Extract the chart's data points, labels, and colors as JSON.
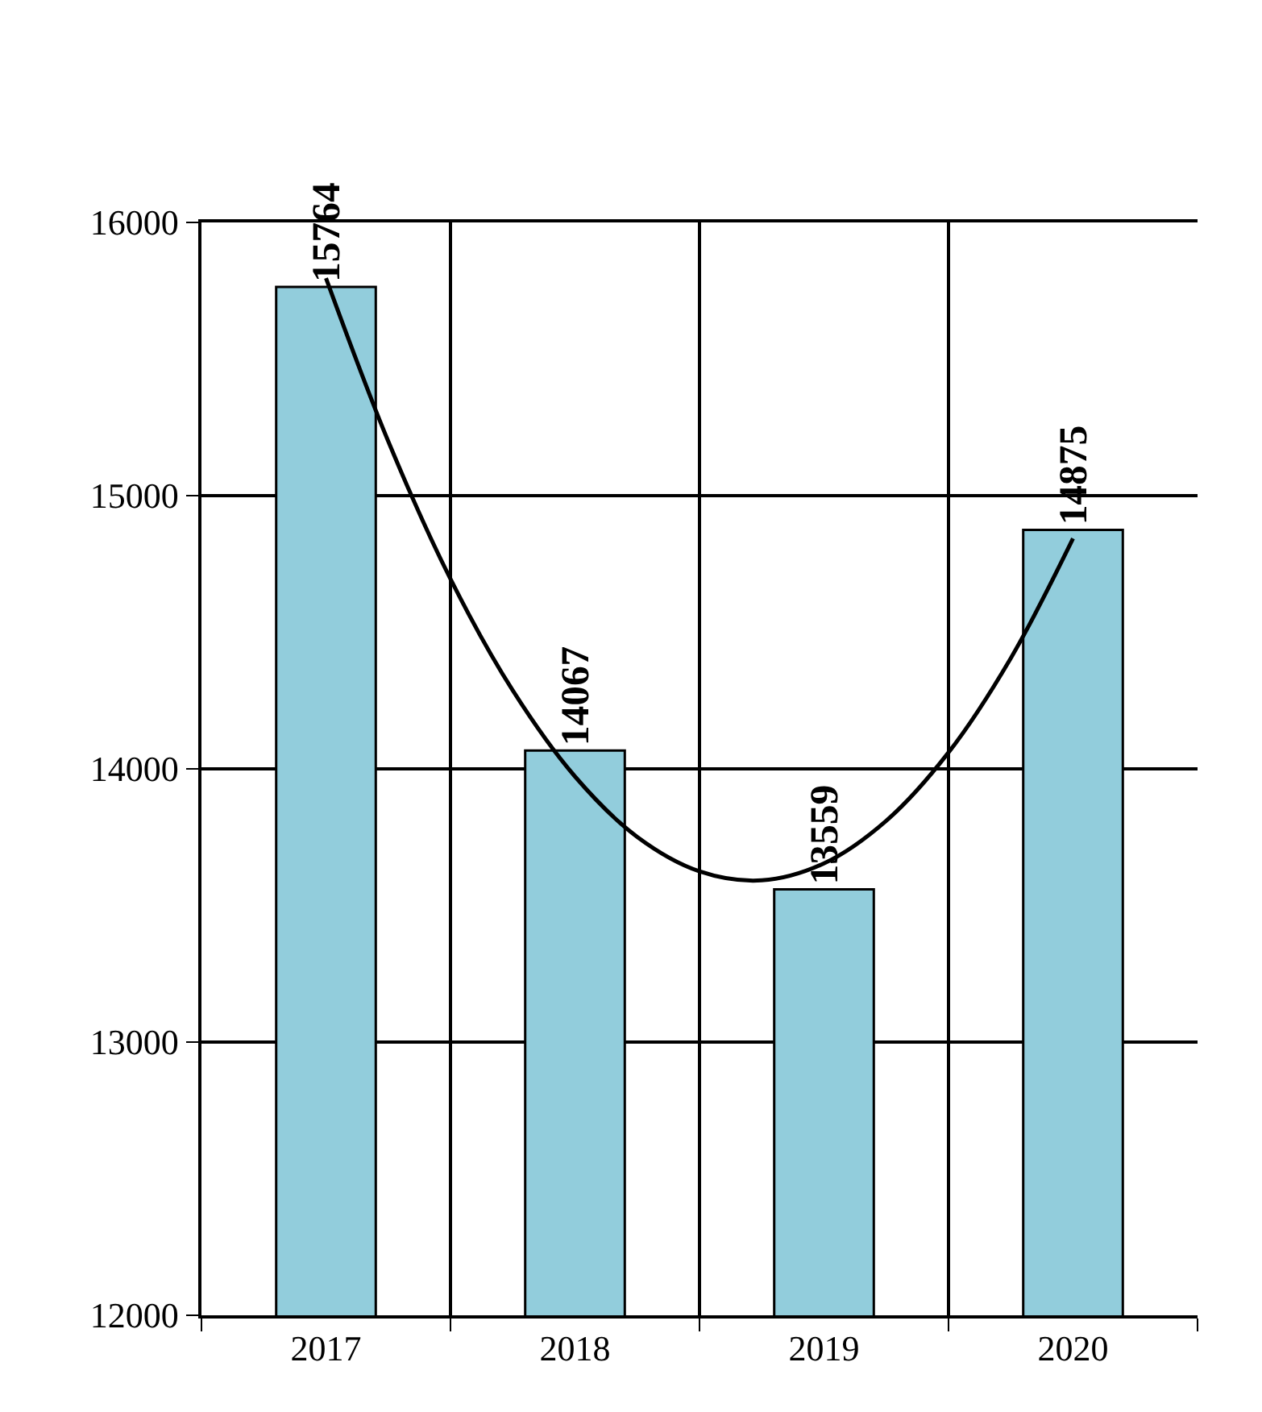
{
  "chart_data": {
    "type": "bar",
    "x": [
      2017,
      2018,
      2019,
      2020
    ],
    "xlim": [
      2016.5,
      2020.5
    ],
    "xticks": [
      {
        "value": 2016.5,
        "label": null
      },
      2017,
      {
        "value": 2017.5,
        "label": null
      },
      2018,
      {
        "value": 2018.5,
        "label": null
      },
      2019,
      {
        "value": 2019.5,
        "label": null
      },
      2020,
      {
        "value": 2020.5,
        "label": null
      }
    ],
    "ylim": [
      12000,
      16000
    ],
    "yticks": [
      12000,
      13000,
      14000,
      15000,
      16000
    ],
    "grid": true,
    "series": [
      {
        "color": "#92cddc",
        "values": [
          15764,
          14067,
          13559,
          14875
        ],
        "value_labels": [
          "15764",
          "14067",
          "13559",
          "14875"
        ]
      },
      {
        "type": "line",
        "color": "#000000",
        "x": [
          2017,
          2017.25,
          2017.5,
          2017.75,
          2018,
          2018.25,
          2018.5,
          2018.75,
          2019,
          2019.25,
          2019.5,
          2019.75,
          2020
        ],
        "values": [
          15796,
          15199,
          14695,
          14287,
          13972,
          13751,
          13625,
          13592,
          13654,
          13810,
          14060,
          14405,
          14843
        ]
      }
    ]
  }
}
